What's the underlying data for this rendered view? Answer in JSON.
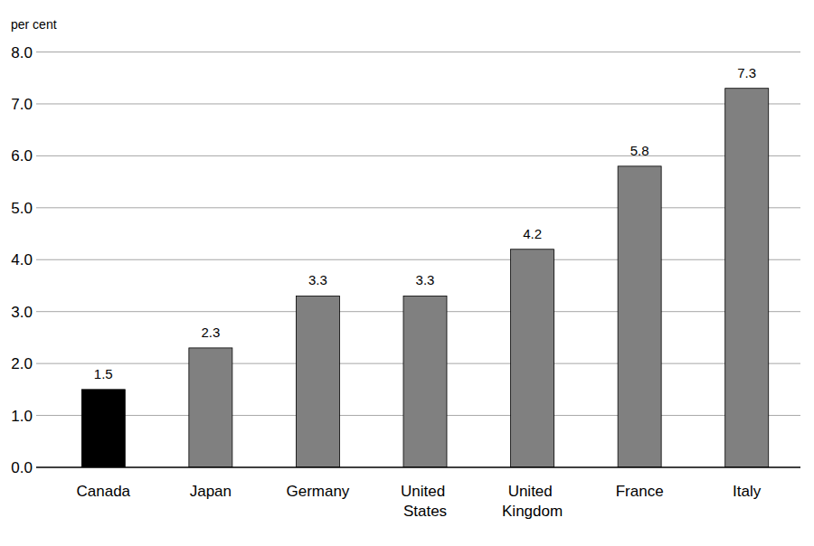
{
  "chart_data": {
    "type": "bar",
    "y_label": "per cent",
    "categories": [
      "Canada",
      "Japan",
      "Germany",
      "United States",
      "United Kingdom",
      "France",
      "Italy"
    ],
    "values": [
      1.5,
      2.3,
      3.3,
      3.3,
      4.2,
      5.8,
      7.3
    ],
    "colors": [
      "#000000",
      "#808080",
      "#808080",
      "#808080",
      "#808080",
      "#808080",
      "#808080"
    ],
    "ylim": [
      0,
      8
    ],
    "yticks": [
      {
        "value": 0,
        "label": "0.0"
      },
      {
        "value": 1,
        "label": "1.0"
      },
      {
        "value": 2,
        "label": "2.0"
      },
      {
        "value": 3,
        "label": "3.0"
      },
      {
        "value": 4,
        "label": "4.0"
      },
      {
        "value": 5,
        "label": "5.0"
      },
      {
        "value": 6,
        "label": "6.0"
      },
      {
        "value": 7,
        "label": "7.0"
      },
      {
        "value": 8,
        "label": "8.0"
      }
    ],
    "grid": true,
    "data_labels": true
  }
}
